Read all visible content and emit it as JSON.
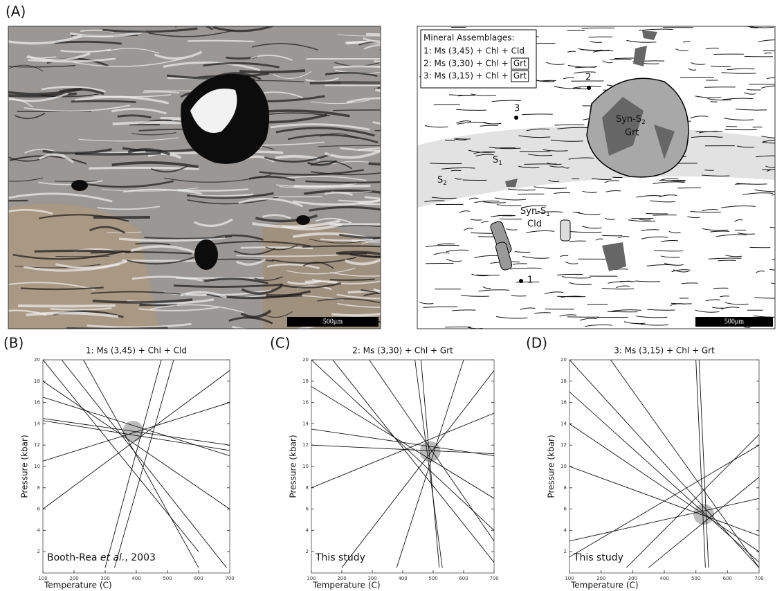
{
  "panel_a": {
    "label": "(A)",
    "photo_scale": "500μm",
    "sketch_scale": "500μm",
    "legend_title": "Mineral Assemblages:",
    "legend": [
      {
        "text": "1: Ms (3,45) + Chl + Cld"
      },
      {
        "text": "2: Ms (3,30) + Chl +",
        "boxed": "Grt"
      },
      {
        "text": "3: Ms (3,15) + Chl +",
        "boxed": "Grt"
      }
    ],
    "garnet": {
      "main": "Syn-S",
      "sub": "2",
      "line2": "Grt"
    },
    "chloritoid": {
      "main": "Syn-S",
      "sub": "1",
      "line2": "Cld"
    },
    "foliation_1": {
      "main": "S",
      "sub": "1"
    },
    "foliation_2": {
      "main": "S",
      "sub": "2"
    },
    "points": [
      "1",
      "2",
      "3"
    ]
  },
  "chart_data": [
    {
      "type": "line",
      "panel_label": "(B)",
      "title": "1: Ms (3,45) + Chl + Cld",
      "xlabel": "Temperature (C)",
      "ylabel": "Pressure (kbar)",
      "annotation": [
        "Booth-Rea ",
        "et al.",
        ", 2003"
      ],
      "xlim": [
        100,
        700
      ],
      "ylim": [
        0,
        20
      ],
      "xticks": [
        100,
        200,
        300,
        400,
        500,
        600,
        700
      ],
      "yticks": [
        2,
        4,
        6,
        8,
        10,
        12,
        14,
        16,
        18,
        20
      ],
      "highlight": {
        "x": 390,
        "y": 13.3
      },
      "color": "#111111",
      "series": [
        {
          "x": [
            100,
            700
          ],
          "y": [
            14.5,
            12
          ]
        },
        {
          "x": [
            100,
            700
          ],
          "y": [
            14.3,
            11.5
          ]
        },
        {
          "x": [
            100,
            700
          ],
          "y": [
            18,
            6
          ]
        },
        {
          "x": [
            100,
            700
          ],
          "y": [
            10.5,
            16
          ]
        },
        {
          "x": [
            100,
            600
          ],
          "y": [
            20,
            2
          ]
        },
        {
          "x": [
            230,
            600
          ],
          "y": [
            20,
            0.5
          ]
        },
        {
          "x": [
            300,
            480
          ],
          "y": [
            0.5,
            20
          ]
        },
        {
          "x": [
            520,
            330
          ],
          "y": [
            20,
            0.5
          ]
        },
        {
          "x": [
            100,
            700
          ],
          "y": [
            6,
            19
          ]
        },
        {
          "x": [
            160,
            690
          ],
          "y": [
            20,
            0.5
          ]
        },
        {
          "x": [
            100,
            700
          ],
          "y": [
            16.5,
            11
          ]
        }
      ]
    },
    {
      "type": "line",
      "panel_label": "(C)",
      "title": "2: Ms (3,30) + Chl + Grt",
      "xlabel": "Temperature (C)",
      "ylabel": "Pressure (kbar)",
      "annotation": [
        "This study"
      ],
      "xlim": [
        100,
        700
      ],
      "ylim": [
        0,
        20
      ],
      "xticks": [
        100,
        200,
        300,
        400,
        500,
        600,
        700
      ],
      "yticks": [
        2,
        4,
        6,
        8,
        10,
        12,
        14,
        16,
        18,
        20
      ],
      "highlight": {
        "x": 490,
        "y": 11.4
      },
      "color": "#111111",
      "series": [
        {
          "x": [
            100,
            700
          ],
          "y": [
            13.5,
            11
          ]
        },
        {
          "x": [
            100,
            700
          ],
          "y": [
            17.5,
            7
          ]
        },
        {
          "x": [
            100,
            700
          ],
          "y": [
            20,
            4
          ]
        },
        {
          "x": [
            170,
            700
          ],
          "y": [
            20,
            1
          ]
        },
        {
          "x": [
            290,
            700
          ],
          "y": [
            20,
            3
          ]
        },
        {
          "x": [
            440,
            530
          ],
          "y": [
            20,
            0.5
          ]
        },
        {
          "x": [
            460,
            520
          ],
          "y": [
            20,
            0.5
          ]
        },
        {
          "x": [
            200,
            700
          ],
          "y": [
            0.5,
            19
          ]
        },
        {
          "x": [
            380,
            600
          ],
          "y": [
            0.5,
            20
          ]
        },
        {
          "x": [
            100,
            700
          ],
          "y": [
            12,
            11.2
          ]
        },
        {
          "x": [
            100,
            700
          ],
          "y": [
            8,
            15
          ]
        }
      ]
    },
    {
      "type": "line",
      "panel_label": "(D)",
      "title": "3: Ms (3,15) + Chl + Grt",
      "xlabel": "Temperature (C)",
      "ylabel": "Pressure (kbar)",
      "annotation": [
        "This study"
      ],
      "xlim": [
        100,
        700
      ],
      "ylim": [
        0,
        20
      ],
      "xticks": [
        100,
        200,
        300,
        400,
        500,
        600,
        700
      ],
      "yticks": [
        2,
        4,
        6,
        8,
        10,
        12,
        14,
        16,
        18,
        20
      ],
      "highlight": {
        "x": 525,
        "y": 5.5
      },
      "color": "#111111",
      "series": [
        {
          "x": [
            100,
            700
          ],
          "y": [
            20,
            0.5
          ]
        },
        {
          "x": [
            100,
            700
          ],
          "y": [
            14,
            2
          ]
        },
        {
          "x": [
            100,
            700
          ],
          "y": [
            10,
            3.5
          ]
        },
        {
          "x": [
            100,
            700
          ],
          "y": [
            1.5,
            12
          ]
        },
        {
          "x": [
            280,
            700
          ],
          "y": [
            0.5,
            13
          ]
        },
        {
          "x": [
            500,
            530
          ],
          "y": [
            20,
            0.5
          ]
        },
        {
          "x": [
            510,
            540
          ],
          "y": [
            20,
            0.5
          ]
        },
        {
          "x": [
            100,
            700
          ],
          "y": [
            17,
            1
          ]
        },
        {
          "x": [
            100,
            700
          ],
          "y": [
            3,
            7
          ]
        },
        {
          "x": [
            350,
            700
          ],
          "y": [
            0.5,
            9
          ]
        },
        {
          "x": [
            230,
            700
          ],
          "y": [
            20,
            0.5
          ]
        }
      ]
    }
  ]
}
